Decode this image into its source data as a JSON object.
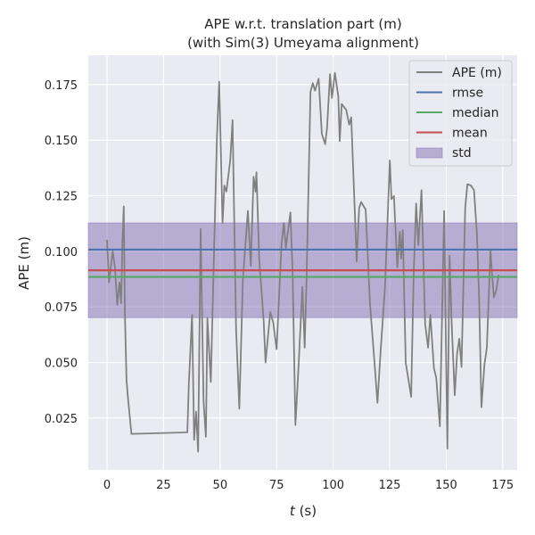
{
  "chart_data": {
    "type": "line",
    "title_line1": "APE w.r.t. translation part (m)",
    "title_line2": "(with Sim(3) Umeyama alignment)",
    "xlabel_var": "t",
    "xlabel_unit": " (s)",
    "ylabel": "APE (m)",
    "xlim": [
      -8.3,
      181.4
    ],
    "ylim": [
      0.0017,
      0.1882
    ],
    "grid": true,
    "legend_placement": "top-right",
    "xticks": [
      0,
      25,
      50,
      75,
      100,
      125,
      150,
      175
    ],
    "xtick_labels": [
      "0",
      "25",
      "50",
      "75",
      "100",
      "125",
      "150",
      "175"
    ],
    "yticks": [
      0.025,
      0.05,
      0.075,
      0.1,
      0.125,
      0.15,
      0.175
    ],
    "ytick_labels": [
      "0.025",
      "0.050",
      "0.075",
      "0.100",
      "0.125",
      "0.150",
      "0.175"
    ],
    "series": [
      {
        "name": "APE (m)",
        "color": "#808080",
        "x": [
          0.0,
          0.9,
          2.5,
          3.5,
          4.5,
          5.5,
          6.2,
          6.8,
          7.4,
          7.9,
          8.6,
          9.2,
          10.8,
          35.5,
          36.2,
          37.6,
          38.5,
          39.4,
          40.3,
          41.4,
          42.7,
          43.7,
          44.4,
          45.9,
          47.6,
          48.6,
          49.6,
          51.1,
          51.9,
          52.8,
          54.5,
          55.5,
          57.1,
          58.5,
          60.1,
          62.3,
          63.6,
          64.8,
          65.7,
          66.1,
          67.3,
          69.3,
          70.1,
          72.2,
          73.5,
          75.0,
          77.2,
          78.2,
          79.1,
          80.0,
          81.1,
          82.1,
          83.3,
          84.7,
          86.4,
          87.4,
          88.3,
          90.0,
          91.0,
          92.0,
          93.6,
          95.0,
          96.5,
          97.3,
          98.6,
          99.5,
          100.8,
          102.3,
          102.9,
          103.8,
          105.8,
          107.1,
          108.0,
          110.4,
          111.5,
          112.4,
          114.4,
          116.3,
          118.3,
          119.6,
          121.0,
          122.9,
          125.1,
          125.8,
          126.9,
          128.4,
          129.5,
          130.1,
          130.8,
          132.1,
          134.5,
          135.6,
          136.7,
          137.7,
          139.1,
          140.7,
          142.0,
          143.0,
          144.6,
          145.6,
          147.2,
          149.1,
          150.5,
          151.5,
          152.5,
          153.8,
          154.8,
          155.8,
          156.8,
          158.4,
          159.4,
          161.0,
          162.3,
          163.6,
          164.6,
          165.6,
          166.9,
          168.0,
          169.6,
          170.2,
          171.1,
          172.2,
          173.2
        ],
        "y": [
          0.1052,
          0.0861,
          0.1001,
          0.0928,
          0.076,
          0.0861,
          0.0767,
          0.1041,
          0.1202,
          0.0715,
          0.042,
          0.0346,
          0.0179,
          0.0186,
          0.0406,
          0.0714,
          0.0152,
          0.0279,
          0.0099,
          0.1101,
          0.0326,
          0.0166,
          0.07,
          0.0413,
          0.1101,
          0.1516,
          0.1763,
          0.1128,
          0.1296,
          0.1269,
          0.1409,
          0.159,
          0.0647,
          0.0293,
          0.0874,
          0.1182,
          0.0935,
          0.1336,
          0.1269,
          0.1356,
          0.0968,
          0.068,
          0.05,
          0.0727,
          0.068,
          0.056,
          0.1035,
          0.1128,
          0.1015,
          0.1088,
          0.1175,
          0.0901,
          0.0219,
          0.048,
          0.0841,
          0.0567,
          0.0894,
          0.1717,
          0.1757,
          0.1723,
          0.1777,
          0.1529,
          0.1482,
          0.1556,
          0.1797,
          0.169,
          0.1803,
          0.1697,
          0.1496,
          0.1663,
          0.1636,
          0.157,
          0.1603,
          0.0955,
          0.1195,
          0.1222,
          0.1188,
          0.0767,
          0.05,
          0.0319,
          0.0554,
          0.0834,
          0.1409,
          0.1235,
          0.1249,
          0.0928,
          0.1088,
          0.0968,
          0.1095,
          0.05,
          0.0346,
          0.0888,
          0.1215,
          0.1028,
          0.1275,
          0.0674,
          0.0567,
          0.0714,
          0.0473,
          0.0433,
          0.0213,
          0.1182,
          0.0112,
          0.0981,
          0.066,
          0.0353,
          0.054,
          0.0607,
          0.048,
          0.1195,
          0.1302,
          0.1296,
          0.1275,
          0.1075,
          0.0781,
          0.0299,
          0.0487,
          0.0567,
          0.1008,
          0.0908,
          0.0794,
          0.0827,
          0.0894
        ]
      }
    ],
    "stats": {
      "rmse": {
        "name": "rmse",
        "value": 0.1008,
        "color": "#4c72b0"
      },
      "median": {
        "name": "median",
        "value": 0.0885,
        "color": "#55a868"
      },
      "mean": {
        "name": "mean",
        "value": 0.0915,
        "color": "#c44e52"
      },
      "std": {
        "name": "std",
        "value": 0.0213,
        "color": "#8172b2"
      }
    },
    "legend": [
      "APE (m)",
      "rmse",
      "median",
      "mean",
      "std"
    ]
  }
}
